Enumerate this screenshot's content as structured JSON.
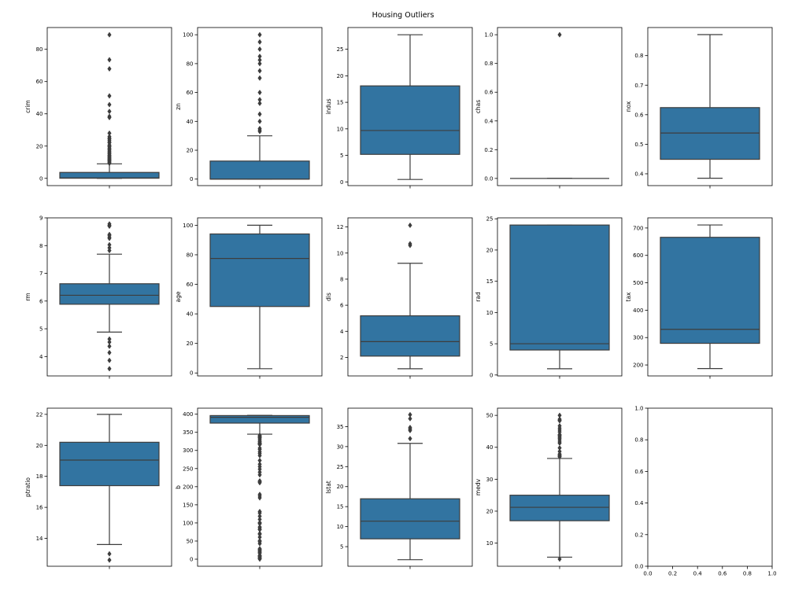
{
  "figure": {
    "title": "Housing Outliers",
    "box_color": "#3274a1",
    "line_color": "#3d3d3d",
    "outlier_color": "#3d3d3d"
  },
  "chart_data": [
    {
      "type": "box",
      "ylabel": "crim",
      "ylim": [
        -4.5,
        93.5
      ],
      "yticks": [
        0,
        20,
        40,
        60,
        80
      ],
      "box": {
        "whislo": 0.006,
        "q1": 0.08,
        "med": 0.26,
        "q3": 3.68,
        "whishi": 9.0
      },
      "outliers": [
        9.3,
        9.9,
        10.2,
        10.8,
        11.1,
        11.6,
        12.0,
        12.5,
        13.0,
        13.5,
        14.0,
        14.3,
        15.0,
        15.6,
        16.0,
        16.8,
        17.5,
        18.1,
        18.8,
        19.6,
        20.1,
        20.7,
        22.0,
        22.6,
        23.6,
        24.4,
        25.0,
        25.9,
        28.0,
        37.7,
        38.4,
        41.5,
        45.7,
        51.1,
        67.9,
        73.5,
        89.0
      ]
    },
    {
      "type": "box",
      "ylabel": "zn",
      "ylim": [
        -4.5,
        105
      ],
      "yticks": [
        0,
        20,
        40,
        60,
        80,
        100
      ],
      "box": {
        "whislo": 0,
        "q1": 0,
        "med": 0,
        "q3": 12.5,
        "whishi": 30
      },
      "outliers": [
        33,
        34,
        35,
        40,
        45,
        52.5,
        55,
        60,
        70,
        75,
        80,
        82.5,
        85,
        90,
        95,
        100
      ]
    },
    {
      "type": "box",
      "ylabel": "indus",
      "ylim": [
        -0.7,
        29.1
      ],
      "yticks": [
        0,
        5,
        10,
        15,
        20,
        25
      ],
      "box": {
        "whislo": 0.46,
        "q1": 5.19,
        "med": 9.69,
        "q3": 18.1,
        "whishi": 27.74
      },
      "outliers": []
    },
    {
      "type": "box",
      "ylabel": "chas",
      "ylim": [
        -0.05,
        1.05
      ],
      "yticks": [
        0.0,
        0.2,
        0.4,
        0.6,
        0.8,
        1.0
      ],
      "box": {
        "whislo": 0,
        "q1": 0,
        "med": 0,
        "q3": 0,
        "whishi": 0
      },
      "outliers": [
        1.0
      ]
    },
    {
      "type": "box",
      "ylabel": "nox",
      "ylim": [
        0.36,
        0.895
      ],
      "yticks": [
        0.4,
        0.5,
        0.6,
        0.7,
        0.8
      ],
      "box": {
        "whislo": 0.385,
        "q1": 0.449,
        "med": 0.538,
        "q3": 0.624,
        "whishi": 0.871
      },
      "outliers": []
    },
    {
      "type": "box",
      "ylabel": "rm",
      "ylim": [
        3.3,
        9.0
      ],
      "yticks": [
        4,
        5,
        6,
        7,
        8,
        9
      ],
      "box": {
        "whislo": 4.88,
        "q1": 5.885,
        "med": 6.208,
        "q3": 6.624,
        "whishi": 7.69
      },
      "outliers": [
        3.56,
        3.86,
        4.14,
        4.37,
        4.52,
        4.63,
        7.82,
        7.92,
        8.03,
        8.26,
        8.3,
        8.37,
        8.4,
        8.7,
        8.73,
        8.78
      ]
    },
    {
      "type": "box",
      "ylabel": "age",
      "ylim": [
        -2,
        105
      ],
      "yticks": [
        0,
        20,
        40,
        60,
        80,
        100
      ],
      "box": {
        "whislo": 2.9,
        "q1": 45.0,
        "med": 77.5,
        "q3": 94.1,
        "whishi": 100
      },
      "outliers": []
    },
    {
      "type": "box",
      "ylabel": "dis",
      "ylim": [
        0.58,
        12.7
      ],
      "yticks": [
        2,
        4,
        6,
        8,
        10,
        12
      ],
      "box": {
        "whislo": 1.13,
        "q1": 2.1,
        "med": 3.21,
        "q3": 5.19,
        "whishi": 9.22
      },
      "outliers": [
        10.59,
        10.71,
        12.13
      ]
    },
    {
      "type": "box",
      "ylabel": "rad",
      "ylim": [
        -0.15,
        25.15
      ],
      "yticks": [
        0,
        5,
        10,
        15,
        20,
        25
      ],
      "box": {
        "whislo": 1,
        "q1": 4,
        "med": 5,
        "q3": 24,
        "whishi": 24
      },
      "outliers": []
    },
    {
      "type": "box",
      "ylabel": "tax",
      "ylim": [
        160,
        737
      ],
      "yticks": [
        200,
        300,
        400,
        500,
        600,
        700
      ],
      "box": {
        "whislo": 187,
        "q1": 279,
        "med": 330,
        "q3": 666,
        "whishi": 711
      },
      "outliers": []
    },
    {
      "type": "box",
      "ylabel": "ptratio",
      "ylim": [
        12.2,
        22.4
      ],
      "yticks": [
        14,
        16,
        18,
        20,
        22
      ],
      "box": {
        "whislo": 13.6,
        "q1": 17.4,
        "med": 19.05,
        "q3": 20.2,
        "whishi": 22.0
      },
      "outliers": [
        12.6,
        13.0
      ]
    },
    {
      "type": "box",
      "ylabel": "b",
      "ylim": [
        -19.5,
        416.6
      ],
      "yticks": [
        0,
        50,
        100,
        150,
        200,
        250,
        300,
        350,
        400
      ],
      "box": {
        "whislo": 344.9,
        "q1": 375.4,
        "med": 391.4,
        "q3": 396.2,
        "whishi": 396.9
      },
      "outliers": [
        0.32,
        2.52,
        3.5,
        3.65,
        6.68,
        7.68,
        9.32,
        10.48,
        16.45,
        18.82,
        21.57,
        22.01,
        24.65,
        27.25,
        28.79,
        43.06,
        48.45,
        50.92,
        60.72,
        68.95,
        70.8,
        81.33,
        83.45,
        88.27,
        88.63,
        97.95,
        100.19,
        100.63,
        109.85,
        118.63,
        127.36,
        131.42,
        169.27,
        174.27,
        178.6,
        210.97,
        213.38,
        216.0,
        232.6,
        240.16,
        248.31,
        255.23,
        261.95,
        272.21,
        285.83,
        291.55,
        296.29,
        302.76,
        306.38,
        316.03,
        318.01,
        318.43,
        318.75,
        320.46,
        321.02,
        324.12,
        327.17,
        331.29,
        334.4,
        336.3,
        338.16,
        338.92,
        341.6
      ]
    },
    {
      "type": "box",
      "ylabel": "lstat",
      "ylim": [
        0.1,
        39.6
      ],
      "yticks": [
        0,
        5,
        10,
        15,
        20,
        25,
        30,
        35
      ],
      "box": {
        "whislo": 1.73,
        "q1": 6.95,
        "med": 11.36,
        "q3": 16.96,
        "whishi": 30.81
      },
      "outliers": [
        31.99,
        34.02,
        34.37,
        34.41,
        34.77,
        36.98,
        37.97
      ]
    },
    {
      "type": "box",
      "ylabel": "medv",
      "ylim": [
        2.75,
        52.25
      ],
      "yticks": [
        10,
        20,
        30,
        40,
        50
      ],
      "box": {
        "whislo": 5.6,
        "q1": 17.0,
        "med": 21.2,
        "q3": 25.0,
        "whishi": 36.5
      },
      "outliers": [
        5.0,
        37.0,
        37.2,
        37.3,
        37.6,
        37.9,
        38.7,
        39.8,
        41.3,
        41.7,
        42.3,
        42.8,
        43.1,
        43.5,
        43.8,
        44.0,
        44.8,
        45.4,
        46.0,
        46.7,
        48.3,
        48.5,
        48.8,
        50.0
      ]
    },
    {
      "type": "empty",
      "ylabel": "",
      "ylim": [
        0,
        1
      ],
      "yticks": [
        0.0,
        0.2,
        0.4,
        0.6,
        0.8,
        1.0
      ],
      "xlim": [
        0,
        1
      ],
      "xticks": [
        0.0,
        0.2,
        0.4,
        0.6,
        0.8,
        1.0
      ]
    }
  ]
}
